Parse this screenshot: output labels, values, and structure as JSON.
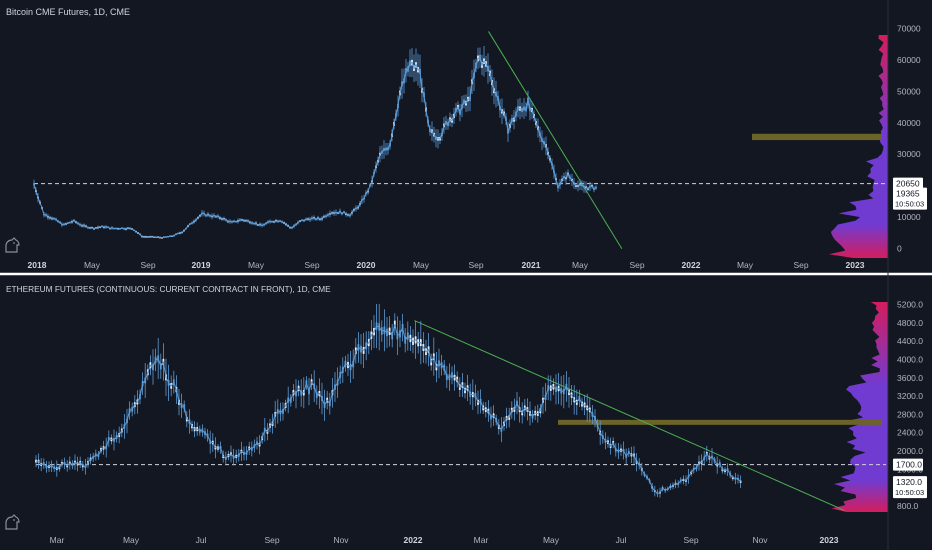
{
  "colors": {
    "background": "#131722",
    "divider": "#ffffff",
    "price_line": "#5b9bd5",
    "candle_light": "#e8f0fa",
    "trendline": "#4caf50",
    "zone": "#6b6328",
    "level_line": "#d1d4dc",
    "axis_text": "#b2b5be",
    "profile_pink": "#e91e63",
    "profile_purple": "#7b3fe4",
    "logo": "#8a8e99"
  },
  "chart_data": [
    {
      "type": "line",
      "title": "Bitcoin CME Futures, 1D, CME",
      "x_tick_labels": [
        "2018",
        "May",
        "Sep",
        "2019",
        "May",
        "Sep",
        "2020",
        "May",
        "Sep",
        "2021",
        "May",
        "Sep",
        "2022",
        "May",
        "Sep",
        "2023"
      ],
      "x_tick_bold": [
        true,
        false,
        false,
        true,
        false,
        false,
        true,
        false,
        false,
        true,
        false,
        false,
        true,
        false,
        false,
        true
      ],
      "y_tick_labels": [
        "70000",
        "60000",
        "50000",
        "40000",
        "30000",
        "20000",
        "10000",
        "0"
      ],
      "y_ticks": [
        70000,
        60000,
        50000,
        40000,
        30000,
        20000,
        10000,
        0
      ],
      "ylim": [
        -2000,
        72000
      ],
      "x_months": [
        0,
        1,
        2,
        3,
        4,
        5,
        6,
        7,
        8,
        9,
        10,
        11,
        12,
        13,
        14,
        15,
        16,
        17,
        18,
        19,
        20,
        21,
        22,
        23,
        24,
        25,
        26,
        27,
        28,
        29,
        30,
        31,
        32,
        33,
        34,
        35,
        36,
        37,
        38,
        39,
        40,
        41,
        42,
        43,
        44,
        45,
        46,
        47,
        48,
        49,
        50,
        51,
        52,
        53,
        54,
        55,
        56,
        57
      ],
      "values": [
        20500,
        11000,
        9500,
        7500,
        8800,
        7200,
        6500,
        7000,
        6400,
        6500,
        6300,
        3800,
        3700,
        3500,
        4000,
        5300,
        8300,
        11000,
        10500,
        9700,
        8300,
        9200,
        8500,
        7300,
        8700,
        9000,
        6500,
        8800,
        9600,
        9400,
        11500,
        11600,
        10800,
        14000,
        19500,
        29500,
        33000,
        49000,
        58500,
        57000,
        37000,
        35500,
        41000,
        44000,
        47000,
        61000,
        57000,
        47000,
        38000,
        44000,
        46000,
        38000,
        31500,
        20000,
        23500,
        20000,
        19500,
        19365
      ],
      "current_price_label": "19365",
      "countdown_label": "10:50:03",
      "level_label": "20650",
      "level_value": 20650,
      "zone_range": [
        34500,
        36500
      ],
      "trendline": {
        "from": [
          46,
          69000
        ],
        "to": [
          59.5,
          0
        ]
      }
    },
    {
      "type": "line",
      "title": "ETHEREUM FUTURES (CONTINUOUS: CURRENT CONTRACT IN FRONT), 1D, CME",
      "x_tick_labels": [
        "Mar",
        "May",
        "Jul",
        "Sep",
        "Nov",
        "2022",
        "Mar",
        "May",
        "Jul",
        "Sep",
        "Nov",
        "2023"
      ],
      "x_tick_bold": [
        false,
        false,
        false,
        false,
        false,
        true,
        false,
        false,
        false,
        false,
        false,
        true
      ],
      "y_tick_labels": [
        "5200.0",
        "4800.0",
        "4400.0",
        "4000.0",
        "3600.0",
        "3200.0",
        "2800.0",
        "2400.0",
        "2000.0",
        "1600.0",
        "800.0"
      ],
      "y_ticks": [
        5200,
        4800,
        4400,
        4000,
        3600,
        3200,
        2800,
        2400,
        2000,
        1600,
        800
      ],
      "ylim": [
        600,
        5300
      ],
      "x_months": [
        0,
        0.5,
        1,
        1.5,
        2,
        2.5,
        3,
        3.5,
        4,
        4.5,
        5,
        5.5,
        6,
        6.5,
        7,
        7.5,
        8,
        8.5,
        9,
        9.5,
        10,
        10.5,
        11,
        11.5,
        12,
        12.5,
        13,
        13.5,
        14,
        14.5,
        15,
        15.5,
        16,
        16.5,
        17,
        17.5,
        18,
        18.5,
        19,
        19.5,
        20,
        20.5
      ],
      "values": [
        1750,
        1600,
        1750,
        1700,
        2100,
        2500,
        3200,
        4100,
        3400,
        2600,
        2300,
        1900,
        1950,
        2200,
        2800,
        3200,
        3450,
        3000,
        3800,
        4300,
        4700,
        4600,
        4500,
        4000,
        3700,
        3300,
        3000,
        2500,
        3000,
        2750,
        3450,
        3300,
        3000,
        2300,
        2000,
        1800,
        1100,
        1200,
        1450,
        1950,
        1600,
        1320
      ],
      "current_price_label": "1320.0",
      "countdown_label": "10:50:03",
      "level_label": "1700.0",
      "level_value": 1700,
      "zone_range": [
        2600,
        2680
      ],
      "trendline": {
        "from": [
          11,
          4850
        ],
        "to": [
          23.5,
          700
        ]
      }
    }
  ]
}
